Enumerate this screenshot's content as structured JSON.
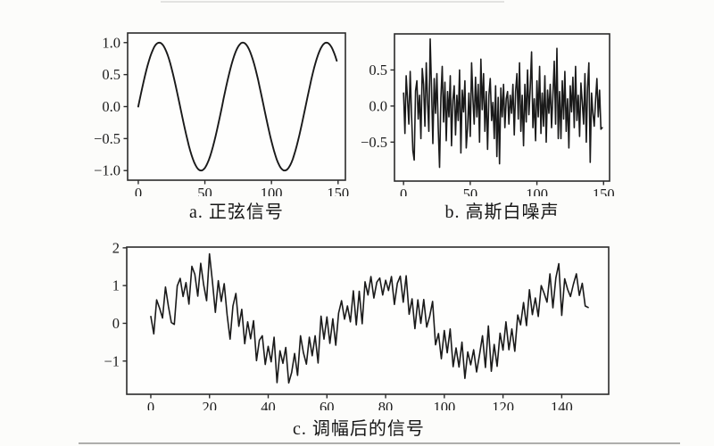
{
  "figure": {
    "captions": {
      "a": "a. 正弦信号",
      "b": "b. 高斯白噪声",
      "c": "c. 调幅后的信号"
    },
    "line_color": "#1a1a1a",
    "axis_color": "#2b2b2b",
    "tick_label_color": "#1c1c1c"
  },
  "chart_data": [
    {
      "id": "a",
      "type": "line",
      "caption": "a. 正弦信号",
      "title": "正弦信号 (sine signal)",
      "xlabel": "",
      "ylabel": "",
      "x_start": 0,
      "x_step": 1,
      "xlim": [
        -8,
        155.5
      ],
      "ylim": [
        -1.15,
        1.15
      ],
      "xticks": {
        "values": [
          0,
          50,
          100,
          150
        ],
        "labels": [
          "0",
          "50",
          "100",
          "150"
        ]
      },
      "yticks": {
        "values": [
          1.0,
          0.5,
          0.0,
          -0.5,
          -1.0
        ],
        "labels": [
          "1.0",
          "0.5",
          "0.0",
          "−0.5",
          "−1.0"
        ]
      },
      "grid": false,
      "legend": null,
      "values": [
        0.0,
        0.1,
        0.199,
        0.296,
        0.389,
        0.479,
        0.565,
        0.644,
        0.717,
        0.783,
        0.841,
        0.891,
        0.932,
        0.964,
        0.985,
        0.997,
        1.0,
        0.992,
        0.974,
        0.947,
        0.909,
        0.863,
        0.808,
        0.746,
        0.675,
        0.599,
        0.516,
        0.427,
        0.335,
        0.239,
        0.141,
        0.042,
        -0.058,
        -0.158,
        -0.256,
        -0.351,
        -0.443,
        -0.53,
        -0.612,
        -0.688,
        -0.757,
        -0.818,
        -0.872,
        -0.916,
        -0.952,
        -0.978,
        -0.994,
        -1.0,
        -0.996,
        -0.982,
        -0.959,
        -0.926,
        -0.883,
        -0.832,
        -0.773,
        -0.706,
        -0.631,
        -0.551,
        -0.465,
        -0.374,
        -0.279,
        -0.182,
        -0.083,
        0.017,
        0.117,
        0.215,
        0.312,
        0.405,
        0.494,
        0.579,
        0.657,
        0.729,
        0.794,
        0.851,
        0.899,
        0.938,
        0.968,
        0.989,
        0.999,
        0.999,
        0.989,
        0.97,
        0.941,
        0.902,
        0.855,
        0.798,
        0.735,
        0.663,
        0.585,
        0.501,
        0.412,
        0.319,
        0.223,
        0.125,
        0.025,
        -0.075,
        -0.174,
        -0.272,
        -0.366,
        -0.458,
        -0.544,
        -0.625,
        -0.7,
        -0.768,
        -0.828,
        -0.88,
        -0.923,
        -0.957,
        -0.981,
        -0.996,
        -1.0,
        -0.994,
        -0.978,
        -0.952,
        -0.917,
        -0.872,
        -0.819,
        -0.757,
        -0.688,
        -0.612,
        -0.529,
        -0.442,
        -0.349,
        -0.253,
        -0.155,
        -0.056,
        0.045,
        0.145,
        0.243,
        0.339,
        0.431,
        0.519,
        0.602,
        0.678,
        0.748,
        0.81,
        0.864,
        0.91,
        0.947,
        0.975,
        0.993,
        1.0,
        0.998,
        0.986,
        0.963,
        0.932,
        0.891,
        0.841,
        0.783,
        0.717
      ]
    },
    {
      "id": "b",
      "type": "line",
      "caption": "b. 高斯白噪声",
      "title": "高斯白噪声 (Gaussian white noise)",
      "xlabel": "",
      "ylabel": "",
      "x_start": 0,
      "x_step": 1,
      "xlim": [
        -6.8,
        154.5
      ],
      "ylim": [
        -1.04,
        1.0
      ],
      "xticks": {
        "values": [
          0,
          50,
          100,
          150
        ],
        "labels": [
          "0",
          "50",
          "100",
          "150"
        ]
      },
      "yticks": {
        "values": [
          0.5,
          0.0,
          -0.5
        ],
        "labels": [
          "0.5",
          "0.0",
          "−0.5"
        ]
      },
      "grid": false,
      "legend": null,
      "values": [
        0.18,
        -0.38,
        0.42,
        0.1,
        -0.25,
        0.48,
        -0.12,
        -0.62,
        -0.75,
        0.21,
        0.35,
        -0.18,
        0.15,
        -0.45,
        0.52,
        0.3,
        -0.28,
        0.6,
        0.05,
        -0.35,
        0.93,
        0.25,
        -0.52,
        0.38,
        -0.1,
        0.45,
        -0.3,
        -0.85,
        0.12,
        0.55,
        -0.22,
        0.33,
        -0.48,
        0.2,
        -0.15,
        0.42,
        -0.55,
        0.08,
        0.28,
        -0.4,
        0.15,
        -0.2,
        0.5,
        -0.65,
        0.22,
        -0.08,
        0.35,
        -0.58,
        -0.3,
        0.18,
        -0.42,
        0.6,
        0.1,
        -0.25,
        0.4,
        -0.15,
        0.3,
        -0.5,
        0.65,
        -0.05,
        0.45,
        -0.35,
        0.2,
        -0.6,
        0.15,
        0.38,
        -0.2,
        0.05,
        -0.45,
        0.28,
        -0.7,
        0.12,
        -0.8,
        0.25,
        -0.15,
        0.3,
        -0.3,
        0.1,
        0.2,
        -0.25,
        0.15,
        -0.1,
        0.3,
        -0.4,
        0.2,
        0.45,
        -0.18,
        0.6,
        -0.35,
        0.15,
        -0.55,
        0.3,
        -0.22,
        0.5,
        -0.12,
        0.25,
        0.75,
        -0.3,
        0.1,
        -0.48,
        0.35,
        -0.15,
        0.55,
        -0.38,
        0.18,
        -0.28,
        0.42,
        -0.5,
        0.22,
        -0.1,
        0.3,
        -0.3,
        0.15,
        0.62,
        -0.25,
        0.8,
        -0.45,
        0.2,
        -0.45,
        0.35,
        -0.18,
        0.48,
        -0.35,
        0.1,
        -0.58,
        0.28,
        -0.08,
        0.4,
        -0.3,
        0.55,
        -0.2,
        0.15,
        -0.42,
        0.32,
        0.05,
        -0.25,
        0.45,
        -0.5,
        0.25,
        0.6,
        -0.78,
        0.18,
        -0.1,
        -0.28,
        0.08,
        0.38,
        -0.15,
        0.22,
        -0.32,
        -0.3
      ]
    },
    {
      "id": "c",
      "type": "line",
      "caption": "c. 调幅后的信号",
      "title": "调幅后的信号 (modulated signal = sine + noise)",
      "xlabel": "",
      "ylabel": "",
      "x_start": 0,
      "x_step": 1,
      "xlim": [
        -8.2,
        156
      ],
      "ylim": [
        -1.88,
        2.02
      ],
      "xticks": {
        "values": [
          0,
          20,
          40,
          60,
          80,
          100,
          120,
          140
        ],
        "labels": [
          "0",
          "20",
          "40",
          "60",
          "80",
          "100",
          "120",
          "140"
        ]
      },
      "yticks": {
        "values": [
          2,
          1,
          0,
          -1
        ],
        "labels": [
          "2",
          "1",
          "0",
          "−1"
        ]
      },
      "grid": false,
      "legend": null,
      "values": [
        0.18,
        -0.28,
        0.62,
        0.4,
        0.14,
        0.96,
        0.45,
        0.02,
        -0.03,
        0.99,
        1.19,
        0.71,
        1.08,
        0.51,
        1.51,
        1.3,
        0.72,
        1.59,
        1.02,
        0.6,
        1.84,
        1.11,
        0.29,
        1.13,
        0.58,
        1.05,
        0.22,
        -0.42,
        0.46,
        0.79,
        -0.08,
        0.37,
        -0.54,
        0.04,
        -0.41,
        0.07,
        -0.99,
        -0.45,
        -0.33,
        -1.09,
        -0.61,
        -1.02,
        -0.37,
        -1.57,
        -0.73,
        -1.06,
        -0.64,
        -1.58,
        -1.3,
        -0.8,
        -1.38,
        -0.33,
        -0.78,
        -1.08,
        -0.37,
        -0.86,
        -0.33,
        -1.05,
        0.19,
        -0.42,
        0.17,
        -0.53,
        0.12,
        -0.58,
        0.27,
        0.6,
        0.11,
        0.46,
        0.04,
        0.86,
        -0.04,
        0.85,
        -0.01,
        1.1,
        0.75,
        1.24,
        0.67,
        1.09,
        1.2,
        0.75,
        1.14,
        0.87,
        1.24,
        0.5,
        1.06,
        1.25,
        0.56,
        1.26,
        0.24,
        0.65,
        -0.14,
        0.62,
        0.0,
        0.63,
        -0.1,
        0.18,
        0.58,
        -0.57,
        -0.27,
        -0.94,
        -0.19,
        -0.78,
        -0.15,
        -1.15,
        -0.65,
        -1.16,
        -0.5,
        -1.46,
        -0.76,
        -1.1,
        -0.7,
        -1.29,
        -0.83,
        -0.33,
        -1.17,
        -0.07,
        -1.27,
        -0.56,
        -1.14,
        -0.26,
        -0.71,
        0.04,
        -0.7,
        -0.15,
        -0.74,
        0.22,
        -0.04,
        0.55,
        -0.06,
        0.89,
        0.23,
        0.67,
        0.18,
        1.0,
        0.8,
        0.56,
        1.31,
        0.41,
        1.2,
        1.58,
        0.21,
        1.18,
        0.9,
        0.71,
        1.04,
        1.31,
        0.74,
        1.06,
        0.46,
        0.42
      ]
    }
  ]
}
